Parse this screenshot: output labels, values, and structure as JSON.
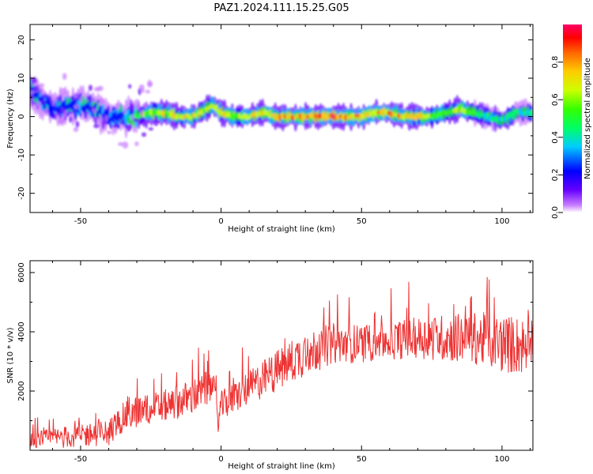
{
  "title": "PAZ1.2024.111.15.25.G05",
  "chart_data": [
    {
      "type": "heatmap",
      "xlabel": "Height of straight line (km)",
      "ylabel": "Frequency (Hz)",
      "xlim": [
        -68,
        111
      ],
      "ylim": [
        -25,
        24
      ],
      "x_ticks": [
        -50,
        0,
        50,
        100
      ],
      "x_tick_labels": [
        "-50",
        "0",
        "50",
        "100"
      ],
      "y_ticks": [
        20,
        10,
        0,
        -10,
        -20
      ],
      "y_tick_labels": [
        "20",
        "10",
        "0",
        "-10",
        "-20"
      ],
      "colorbar": {
        "label": "Normalized spectral amplitude",
        "range": [
          0,
          1
        ],
        "ticks": [
          0.0,
          0.2,
          0.4,
          0.6,
          0.8
        ],
        "tick_labels": [
          "0.0",
          "0.2",
          "0.4",
          "0.6",
          "0.8"
        ],
        "colormap": "gist_rainbow_r"
      },
      "ridge": {
        "x": [
          -68,
          -65,
          -60,
          -55,
          -50,
          -45,
          -40,
          -35,
          -30,
          -25,
          -20,
          -15,
          -10,
          -5,
          -3,
          0,
          5,
          10,
          15,
          20,
          25,
          30,
          35,
          40,
          45,
          50,
          55,
          60,
          65,
          70,
          75,
          80,
          85,
          90,
          95,
          100,
          105,
          111
        ],
        "frequency": [
          7,
          5,
          2,
          3,
          3,
          2,
          0,
          0,
          0,
          1,
          1,
          0,
          0,
          2,
          3,
          1,
          0,
          0,
          1,
          0,
          0,
          0,
          0,
          0,
          0,
          0,
          1,
          1,
          0,
          0,
          0,
          1,
          2,
          1,
          0,
          -1,
          1,
          1
        ],
        "amplitude": [
          0.3,
          0.3,
          0.3,
          0.3,
          0.35,
          0.3,
          0.3,
          0.4,
          0.6,
          0.7,
          0.75,
          0.8,
          0.8,
          0.75,
          0.8,
          0.8,
          0.75,
          0.8,
          0.8,
          0.85,
          0.9,
          0.9,
          0.95,
          1.0,
          0.9,
          0.85,
          0.9,
          0.9,
          0.85,
          0.8,
          0.7,
          0.65,
          0.75,
          0.6,
          0.5,
          0.5,
          0.5,
          0.5
        ]
      }
    },
    {
      "type": "line",
      "xlabel": "Height of straight line (km)",
      "ylabel": "SNR (10 * v/v)",
      "xlim": [
        -68,
        111
      ],
      "ylim": [
        0,
        6400
      ],
      "x_ticks": [
        -50,
        0,
        50,
        100
      ],
      "x_tick_labels": [
        "-50",
        "0",
        "50",
        "100"
      ],
      "y_ticks": [
        2000,
        4000,
        6000
      ],
      "y_tick_labels": [
        "2000",
        "4000",
        "6000"
      ],
      "color": "#ee3333",
      "trend": {
        "x": [
          -68,
          -60,
          -50,
          -40,
          -35,
          -30,
          -20,
          -10,
          -3,
          -1,
          0,
          10,
          20,
          30,
          40,
          50,
          60,
          70,
          80,
          90,
          100,
          111
        ],
        "snr": [
          300,
          400,
          500,
          600,
          1100,
          1300,
          1500,
          1800,
          2200,
          1000,
          1500,
          2100,
          2700,
          3300,
          3600,
          3600,
          3700,
          3800,
          3800,
          3800,
          3600,
          3500
        ],
        "spread": [
          300,
          350,
          400,
          450,
          500,
          550,
          550,
          600,
          600,
          400,
          500,
          600,
          700,
          800,
          700,
          650,
          650,
          700,
          800,
          900,
          1000,
          1000
        ]
      }
    }
  ]
}
